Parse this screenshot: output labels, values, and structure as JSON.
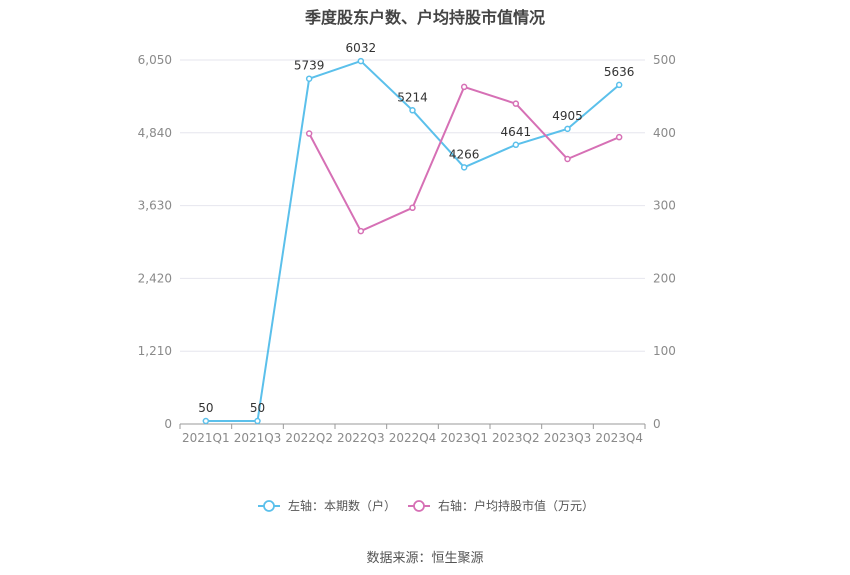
{
  "title": "季度股东户数、户均持股市值情况",
  "source": "数据来源：恒生聚源",
  "colors": {
    "left_series": "#5bc0eb",
    "right_series": "#d670b5",
    "grid": "#e6e6ee",
    "axis": "#9a9a9a"
  },
  "chart_data": {
    "type": "line",
    "categories": [
      "2021Q1",
      "2021Q3",
      "2022Q2",
      "2022Q3",
      "2022Q4",
      "2023Q1",
      "2023Q2",
      "2023Q3",
      "2023Q4"
    ],
    "left_axis": {
      "min": 0,
      "max": 6050,
      "ticks": [
        0,
        1210,
        2420,
        3630,
        4840,
        6050
      ],
      "tick_labels": [
        "0",
        "1,210",
        "2,420",
        "3,630",
        "4,840",
        "6,050"
      ]
    },
    "right_axis": {
      "min": 0,
      "max": 500,
      "ticks": [
        0,
        100,
        200,
        300,
        400,
        500
      ],
      "tick_labels": [
        "0",
        "100",
        "200",
        "300",
        "400",
        "500"
      ]
    },
    "grid": true,
    "legend_position": "bottom",
    "series": [
      {
        "name": "左轴：本期数（户）",
        "axis": "left",
        "values": [
          50,
          50,
          5739,
          6032,
          5214,
          4266,
          4641,
          4905,
          5636
        ],
        "labels": [
          "50",
          "50",
          "5739",
          "6032",
          "5214",
          "4266",
          "4641",
          "4905",
          "5636"
        ]
      },
      {
        "name": "右轴：户均持股市值（万元）",
        "axis": "right",
        "values": [
          null,
          null,
          399,
          265,
          297,
          463,
          440,
          364,
          394
        ]
      }
    ]
  }
}
